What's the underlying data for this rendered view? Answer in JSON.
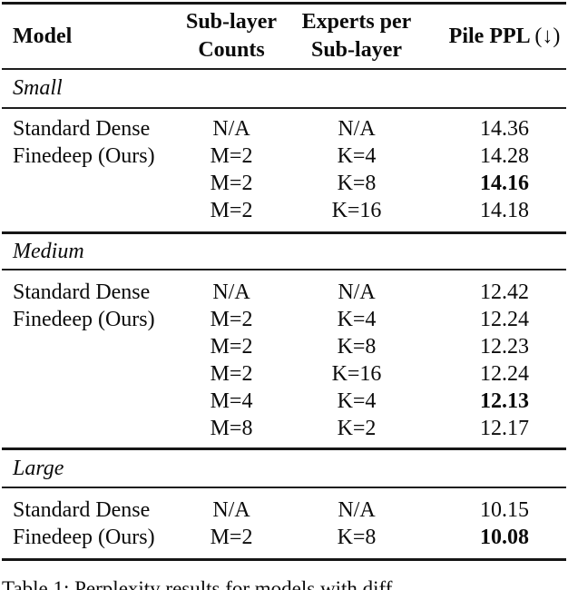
{
  "table": {
    "header": {
      "model": "Model",
      "sublayer_line1": "Sub-layer",
      "sublayer_line2": "Counts",
      "experts_line1": "Experts per",
      "experts_line2": "Sub-layer",
      "ppl_main": "Pile PPL",
      "ppl_suffix": "(↓)"
    },
    "sections": [
      {
        "label": "Small",
        "rows": [
          {
            "model": "Standard Dense",
            "sublayer": "N/A",
            "experts": "N/A",
            "ppl": "14.36"
          },
          {
            "model": "Finedeep (Ours)",
            "sublayer": "M=2",
            "experts": "K=4",
            "ppl": "14.28"
          },
          {
            "model": "",
            "sublayer": "M=2",
            "experts": "K=8",
            "ppl": "14.16"
          },
          {
            "model": "",
            "sublayer": "M=2",
            "experts": "K=16",
            "ppl": "14.18"
          }
        ]
      },
      {
        "label": "Medium",
        "rows": [
          {
            "model": "Standard Dense",
            "sublayer": "N/A",
            "experts": "N/A",
            "ppl": "12.42"
          },
          {
            "model": "Finedeep (Ours)",
            "sublayer": "M=2",
            "experts": "K=4",
            "ppl": "12.24"
          },
          {
            "model": "",
            "sublayer": "M=2",
            "experts": "K=8",
            "ppl": "12.23"
          },
          {
            "model": "",
            "sublayer": "M=2",
            "experts": "K=16",
            "ppl": "12.24"
          },
          {
            "model": "",
            "sublayer": "M=4",
            "experts": "K=4",
            "ppl": "12.13"
          },
          {
            "model": "",
            "sublayer": "M=8",
            "experts": "K=2",
            "ppl": "12.17"
          }
        ]
      },
      {
        "label": "Large",
        "rows": [
          {
            "model": "Standard Dense",
            "sublayer": "N/A",
            "experts": "N/A",
            "ppl": "10.15"
          },
          {
            "model": "Finedeep (Ours)",
            "sublayer": "M=2",
            "experts": "K=8",
            "ppl": "10.08"
          }
        ]
      }
    ]
  },
  "caption": "Table 1: Perplexity results for models with diff"
}
